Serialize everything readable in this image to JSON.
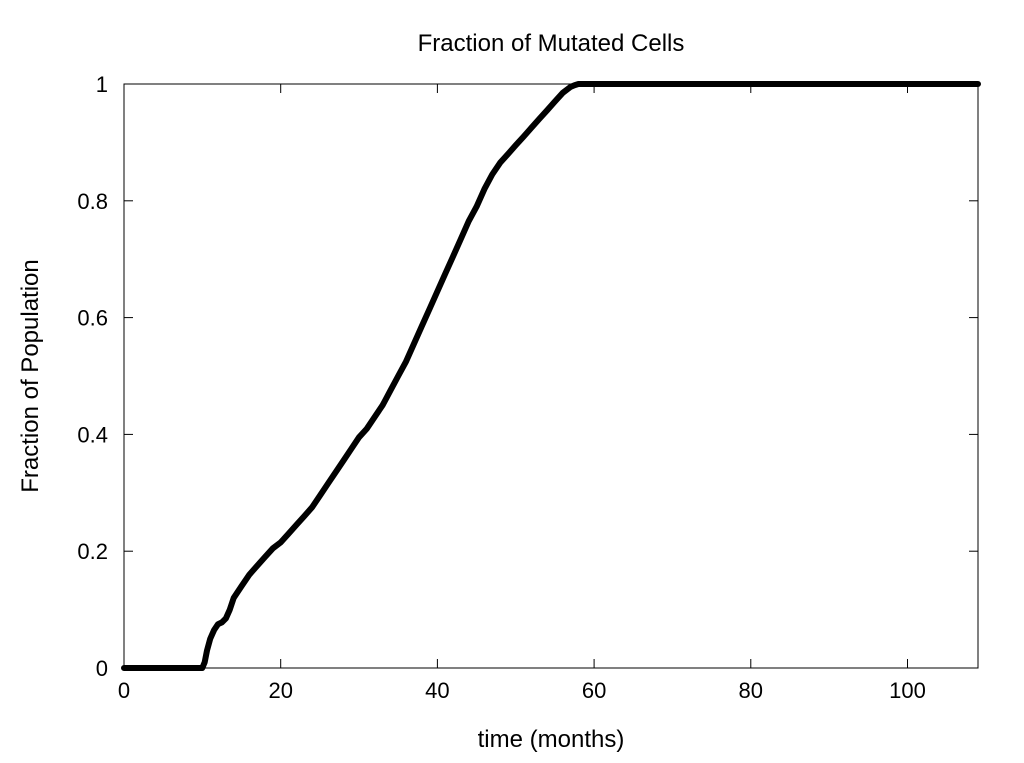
{
  "chart_data": {
    "type": "line",
    "title": "Fraction of Mutated Cells",
    "xlabel": "time (months)",
    "ylabel": "Fraction of Population",
    "xlim": [
      0,
      109
    ],
    "ylim": [
      0,
      1
    ],
    "xticks": [
      "0",
      "20",
      "40",
      "60",
      "80",
      "100"
    ],
    "yticks": [
      "0",
      "0.2",
      "0.4",
      "0.6",
      "0.8",
      "1"
    ],
    "grid": false,
    "legend": "none",
    "colors": {
      "series": "#000000",
      "axes": "#000000",
      "background": "#ffffff"
    },
    "series": [
      {
        "x": [
          0,
          2,
          4,
          6,
          8,
          9,
          10,
          10.3,
          10.6,
          11,
          11.5,
          12,
          12.5,
          13,
          13.5,
          14,
          15,
          16,
          17,
          18,
          19,
          20,
          21,
          22,
          23,
          24,
          25,
          26,
          27,
          28,
          29,
          30,
          31,
          32,
          33,
          34,
          35,
          36,
          37,
          38,
          39,
          40,
          41,
          42,
          43,
          44,
          45,
          46,
          47,
          48,
          49,
          50,
          51,
          52,
          53,
          54,
          55,
          56,
          57,
          57.5,
          58,
          60,
          70,
          80,
          90,
          100,
          109
        ],
        "y": [
          0,
          0,
          0,
          0,
          0,
          0,
          0,
          0.01,
          0.03,
          0.05,
          0.065,
          0.075,
          0.078,
          0.085,
          0.1,
          0.12,
          0.14,
          0.16,
          0.175,
          0.19,
          0.205,
          0.215,
          0.23,
          0.245,
          0.26,
          0.275,
          0.295,
          0.315,
          0.335,
          0.355,
          0.375,
          0.395,
          0.41,
          0.43,
          0.45,
          0.475,
          0.5,
          0.525,
          0.555,
          0.585,
          0.615,
          0.645,
          0.675,
          0.705,
          0.735,
          0.765,
          0.79,
          0.82,
          0.845,
          0.865,
          0.88,
          0.895,
          0.91,
          0.925,
          0.94,
          0.955,
          0.97,
          0.985,
          0.995,
          0.998,
          1,
          1,
          1,
          1,
          1,
          1,
          1
        ]
      }
    ]
  }
}
